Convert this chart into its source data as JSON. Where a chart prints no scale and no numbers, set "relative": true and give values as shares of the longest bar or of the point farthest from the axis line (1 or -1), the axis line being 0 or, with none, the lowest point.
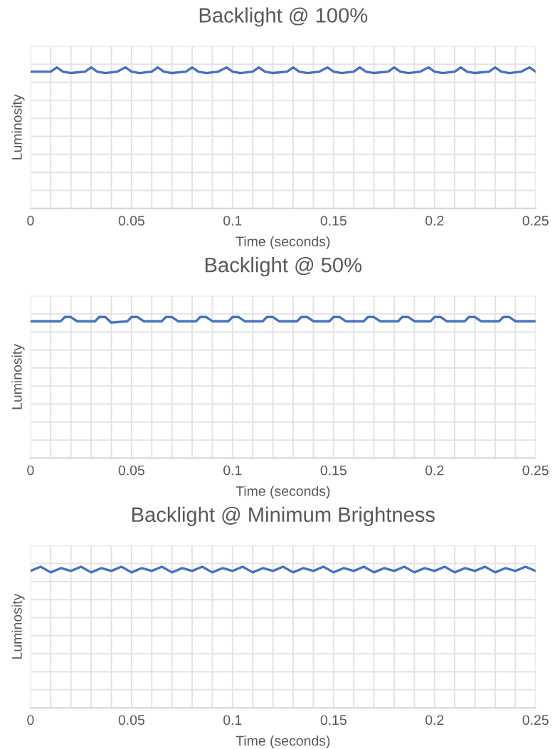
{
  "chart_data": [
    {
      "type": "line",
      "title": "Backlight @ 100%",
      "xlabel": "Time (seconds)",
      "ylabel": "Luminosity",
      "relative": true,
      "grid": true,
      "xlim": [
        0,
        0.25
      ],
      "xticks": [
        0,
        {
          "value": 0.01,
          "label": null
        },
        {
          "value": 0.02,
          "label": null
        },
        {
          "value": 0.03,
          "label": null
        },
        {
          "value": 0.04,
          "label": null
        },
        0.05,
        {
          "value": 0.06,
          "label": null
        },
        {
          "value": 0.07,
          "label": null
        },
        {
          "value": 0.08,
          "label": null
        },
        {
          "value": 0.09,
          "label": null
        },
        0.1,
        {
          "value": 0.11,
          "label": null
        },
        {
          "value": 0.12,
          "label": null
        },
        {
          "value": 0.13,
          "label": null
        },
        {
          "value": 0.14,
          "label": null
        },
        0.15,
        {
          "value": 0.16,
          "label": null
        },
        {
          "value": 0.17,
          "label": null
        },
        {
          "value": 0.18,
          "label": null
        },
        {
          "value": 0.19,
          "label": null
        },
        0.2,
        {
          "value": 0.21,
          "label": null
        },
        {
          "value": 0.22,
          "label": null
        },
        {
          "value": 0.23,
          "label": null
        },
        {
          "value": 0.24,
          "label": null
        },
        0.25
      ],
      "tick_labels": "x",
      "x": [
        0,
        0.01,
        0.013,
        0.016,
        0.02,
        0.027,
        0.03,
        0.033,
        0.037,
        0.043,
        0.047,
        0.05,
        0.054,
        0.06,
        0.063,
        0.066,
        0.07,
        0.077,
        0.08,
        0.083,
        0.087,
        0.093,
        0.097,
        0.1,
        0.104,
        0.11,
        0.113,
        0.116,
        0.12,
        0.127,
        0.13,
        0.133,
        0.137,
        0.143,
        0.147,
        0.15,
        0.154,
        0.16,
        0.163,
        0.166,
        0.17,
        0.177,
        0.18,
        0.183,
        0.187,
        0.193,
        0.197,
        0.2,
        0.204,
        0.21,
        0.213,
        0.216,
        0.22,
        0.227,
        0.23,
        0.233,
        0.237,
        0.243,
        0.247,
        0.25
      ],
      "series": [
        {
          "color": "#4472c4",
          "values": [
            0.97,
            0.97,
            1,
            0.97,
            0.96,
            0.97,
            1,
            0.97,
            0.96,
            0.97,
            1,
            0.97,
            0.96,
            0.97,
            1,
            0.97,
            0.96,
            0.97,
            1,
            0.97,
            0.96,
            0.97,
            1,
            0.97,
            0.96,
            0.97,
            1,
            0.97,
            0.96,
            0.97,
            1,
            0.97,
            0.96,
            0.97,
            1,
            0.97,
            0.96,
            0.97,
            1,
            0.97,
            0.96,
            0.97,
            1,
            0.97,
            0.96,
            0.97,
            1,
            0.97,
            0.96,
            0.97,
            1,
            0.97,
            0.96,
            0.97,
            1,
            0.97,
            0.96,
            0.97,
            1,
            0.97
          ]
        }
      ]
    },
    {
      "type": "line",
      "title": "Backlight @ 50%",
      "xlabel": "Time (seconds)",
      "ylabel": "Luminosity",
      "relative": true,
      "grid": true,
      "xlim": [
        0,
        0.25
      ],
      "xticks": [
        0,
        {
          "value": 0.01,
          "label": null
        },
        {
          "value": 0.02,
          "label": null
        },
        {
          "value": 0.03,
          "label": null
        },
        {
          "value": 0.04,
          "label": null
        },
        0.05,
        {
          "value": 0.06,
          "label": null
        },
        {
          "value": 0.07,
          "label": null
        },
        {
          "value": 0.08,
          "label": null
        },
        {
          "value": 0.09,
          "label": null
        },
        0.1,
        {
          "value": 0.11,
          "label": null
        },
        {
          "value": 0.12,
          "label": null
        },
        {
          "value": 0.13,
          "label": null
        },
        {
          "value": 0.14,
          "label": null
        },
        0.15,
        {
          "value": 0.16,
          "label": null
        },
        {
          "value": 0.17,
          "label": null
        },
        {
          "value": 0.18,
          "label": null
        },
        {
          "value": 0.19,
          "label": null
        },
        0.2,
        {
          "value": 0.21,
          "label": null
        },
        {
          "value": 0.22,
          "label": null
        },
        {
          "value": 0.23,
          "label": null
        },
        {
          "value": 0.24,
          "label": null
        },
        0.25
      ],
      "tick_labels": "x",
      "x": [
        0,
        0.015,
        0.017,
        0.02,
        0.023,
        0.032,
        0.034,
        0.037,
        0.04,
        0.048,
        0.05,
        0.053,
        0.056,
        0.065,
        0.067,
        0.07,
        0.073,
        0.082,
        0.084,
        0.087,
        0.09,
        0.098,
        0.1,
        0.103,
        0.106,
        0.115,
        0.117,
        0.12,
        0.123,
        0.132,
        0.134,
        0.137,
        0.14,
        0.148,
        0.15,
        0.153,
        0.156,
        0.165,
        0.167,
        0.17,
        0.173,
        0.182,
        0.184,
        0.187,
        0.19,
        0.198,
        0.2,
        0.203,
        0.206,
        0.215,
        0.217,
        0.22,
        0.223,
        0.232,
        0.234,
        0.237,
        0.24,
        0.25
      ],
      "series": [
        {
          "color": "#4472c4",
          "values": [
            0.97,
            0.97,
            1,
            1,
            0.97,
            0.97,
            1,
            1,
            0.96,
            0.97,
            1,
            1,
            0.97,
            0.97,
            1,
            1,
            0.97,
            0.97,
            1,
            1,
            0.97,
            0.97,
            1,
            1,
            0.97,
            0.97,
            1,
            1,
            0.97,
            0.97,
            1,
            1,
            0.97,
            0.97,
            1,
            1,
            0.97,
            0.97,
            1,
            1,
            0.97,
            0.97,
            1,
            1,
            0.97,
            0.97,
            1,
            1,
            0.97,
            0.97,
            1,
            1,
            0.97,
            0.97,
            1,
            1,
            0.97,
            0.97
          ]
        }
      ]
    },
    {
      "type": "line",
      "title": "Backlight @ Minimum Brightness",
      "xlabel": "Time (seconds)",
      "ylabel": "Luminosity",
      "relative": true,
      "grid": true,
      "xlim": [
        0,
        0.25
      ],
      "xticks": [
        0,
        {
          "value": 0.01,
          "label": null
        },
        {
          "value": 0.02,
          "label": null
        },
        {
          "value": 0.03,
          "label": null
        },
        {
          "value": 0.04,
          "label": null
        },
        0.05,
        {
          "value": 0.06,
          "label": null
        },
        {
          "value": 0.07,
          "label": null
        },
        {
          "value": 0.08,
          "label": null
        },
        {
          "value": 0.09,
          "label": null
        },
        0.1,
        {
          "value": 0.11,
          "label": null
        },
        {
          "value": 0.12,
          "label": null
        },
        {
          "value": 0.13,
          "label": null
        },
        {
          "value": 0.14,
          "label": null
        },
        0.15,
        {
          "value": 0.16,
          "label": null
        },
        {
          "value": 0.17,
          "label": null
        },
        {
          "value": 0.18,
          "label": null
        },
        {
          "value": 0.19,
          "label": null
        },
        0.2,
        {
          "value": 0.21,
          "label": null
        },
        {
          "value": 0.22,
          "label": null
        },
        {
          "value": 0.23,
          "label": null
        },
        {
          "value": 0.24,
          "label": null
        },
        0.25
      ],
      "tick_labels": "x",
      "x": [
        0,
        0.005,
        0.01,
        0.015,
        0.02,
        0.025,
        0.03,
        0.035,
        0.04,
        0.045,
        0.05,
        0.055,
        0.06,
        0.065,
        0.07,
        0.075,
        0.08,
        0.085,
        0.09,
        0.095,
        0.1,
        0.105,
        0.11,
        0.115,
        0.12,
        0.125,
        0.13,
        0.135,
        0.14,
        0.145,
        0.15,
        0.155,
        0.16,
        0.165,
        0.17,
        0.175,
        0.18,
        0.185,
        0.19,
        0.195,
        0.2,
        0.205,
        0.21,
        0.215,
        0.22,
        0.225,
        0.23,
        0.235,
        0.24,
        0.245,
        0.25
      ],
      "series": [
        {
          "color": "#4472c4",
          "values": [
            0.97,
            1,
            0.96,
            0.99,
            0.97,
            1,
            0.96,
            0.99,
            0.97,
            1,
            0.96,
            0.99,
            0.97,
            1,
            0.96,
            0.99,
            0.97,
            1,
            0.96,
            0.99,
            0.97,
            1,
            0.96,
            0.99,
            0.97,
            1,
            0.96,
            0.99,
            0.97,
            1,
            0.96,
            0.99,
            0.97,
            1,
            0.96,
            0.99,
            0.97,
            1,
            0.96,
            0.99,
            0.97,
            1,
            0.96,
            0.99,
            0.97,
            1,
            0.96,
            0.99,
            0.97,
            1,
            0.97
          ]
        }
      ]
    }
  ]
}
